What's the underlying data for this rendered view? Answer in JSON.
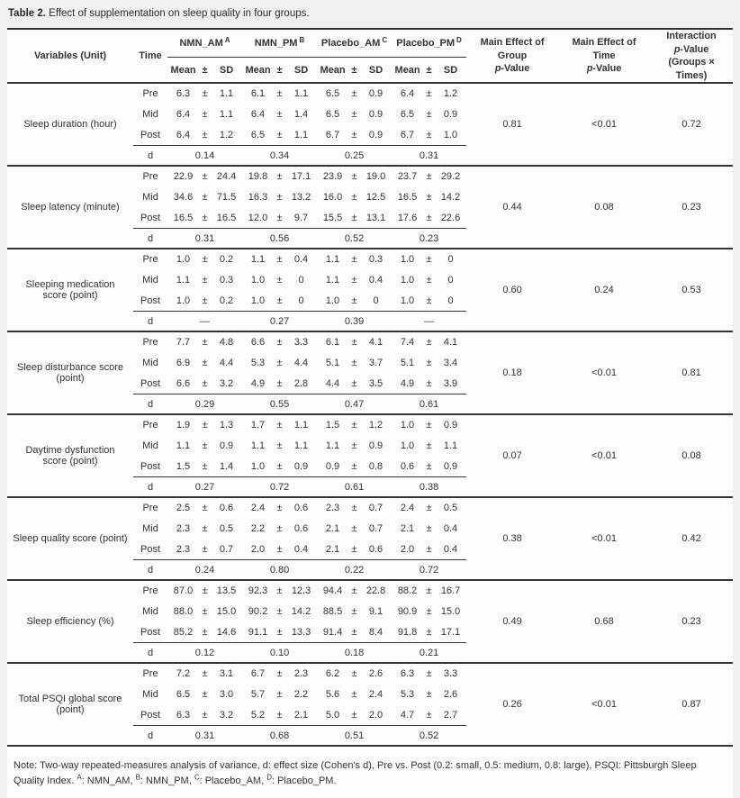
{
  "title": {
    "label": "Table 2.",
    "text": "Effect of supplementation on sleep quality in four groups."
  },
  "header": {
    "variables": "Variables (Unit)",
    "time": "Time",
    "groups": [
      {
        "name": "NMN_AM",
        "sup": "A"
      },
      {
        "name": "NMN_PM",
        "sup": "B"
      },
      {
        "name": "Placebo_AM",
        "sup": "C"
      },
      {
        "name": "Placebo_PM",
        "sup": "D"
      }
    ],
    "stat": {
      "mean": "Mean",
      "pm": "±",
      "sd": "SD"
    },
    "p_headers": {
      "group_title": "Main Effect of Group",
      "time_title": "Main Effect of Time",
      "interaction_title": "Interaction",
      "p": "p",
      "value_suffix": "-Value",
      "interaction_sub": "(Groups × Times)"
    }
  },
  "labels": {
    "pm": "±",
    "d": "d"
  },
  "sections": [
    {
      "variable": "Sleep duration (hour)",
      "rows": [
        {
          "time": "Pre",
          "values": [
            [
              "6.3",
              "1.1"
            ],
            [
              "6.1",
              "1.1"
            ],
            [
              "6.5",
              "0.9"
            ],
            [
              "6.4",
              "1.2"
            ]
          ]
        },
        {
          "time": "Mid",
          "values": [
            [
              "6.4",
              "1.1"
            ],
            [
              "6.4",
              "1.4"
            ],
            [
              "6.5",
              "0.9"
            ],
            [
              "6.5",
              "0.9"
            ]
          ]
        },
        {
          "time": "Post",
          "values": [
            [
              "6.4",
              "1.2"
            ],
            [
              "6.5",
              "1.1"
            ],
            [
              "6.7",
              "0.9"
            ],
            [
              "6.7",
              "1.0"
            ]
          ]
        }
      ],
      "d": [
        "0.14",
        "0.34",
        "0.25",
        "0.31"
      ],
      "p_group": "0.81",
      "p_time": "<0.01",
      "p_interaction": "0.72"
    },
    {
      "variable": "Sleep latency (minute)",
      "rows": [
        {
          "time": "Pre",
          "values": [
            [
              "22.9",
              "24.4"
            ],
            [
              "19.8",
              "17.1"
            ],
            [
              "23.9",
              "19.0"
            ],
            [
              "23.7",
              "29.2"
            ]
          ]
        },
        {
          "time": "Mid",
          "values": [
            [
              "34.6",
              "71.5"
            ],
            [
              "16.3",
              "13.2"
            ],
            [
              "16.0",
              "12.5"
            ],
            [
              "16.5",
              "14.2"
            ]
          ]
        },
        {
          "time": "Post",
          "values": [
            [
              "16.5",
              "16.5"
            ],
            [
              "12.0",
              "9.7"
            ],
            [
              "15.5",
              "13.1"
            ],
            [
              "17.6",
              "22.6"
            ]
          ]
        }
      ],
      "d": [
        "0.31",
        "0.56",
        "0.52",
        "0.23"
      ],
      "p_group": "0.44",
      "p_time": "0.08",
      "p_interaction": "0.23"
    },
    {
      "variable": "Sleeping medication score (point)",
      "rows": [
        {
          "time": "Pre",
          "values": [
            [
              "1.0",
              "0.2"
            ],
            [
              "1.1",
              "0.4"
            ],
            [
              "1.1",
              "0.3"
            ],
            [
              "1.0",
              "0"
            ]
          ]
        },
        {
          "time": "Mid",
          "values": [
            [
              "1.1",
              "0.3"
            ],
            [
              "1.0",
              "0"
            ],
            [
              "1.1",
              "0.4"
            ],
            [
              "1.0",
              "0"
            ]
          ]
        },
        {
          "time": "Post",
          "values": [
            [
              "1.0",
              "0.2"
            ],
            [
              "1.0",
              "0"
            ],
            [
              "1.0",
              "0"
            ],
            [
              "1.0",
              "0"
            ]
          ]
        }
      ],
      "d": [
        "—",
        "0.27",
        "0.39",
        "—"
      ],
      "p_group": "0.60",
      "p_time": "0.24",
      "p_interaction": "0.53"
    },
    {
      "variable": "Sleep disturbance score (point)",
      "rows": [
        {
          "time": "Pre",
          "values": [
            [
              "7.7",
              "4.8"
            ],
            [
              "6.6",
              "3.3"
            ],
            [
              "6.1",
              "4.1"
            ],
            [
              "7.4",
              "4.1"
            ]
          ]
        },
        {
          "time": "Mid",
          "values": [
            [
              "6.9",
              "4.4"
            ],
            [
              "5.3",
              "4.4"
            ],
            [
              "5.1",
              "3.7"
            ],
            [
              "5.1",
              "3.4"
            ]
          ]
        },
        {
          "time": "Post",
          "values": [
            [
              "6.6",
              "3.2"
            ],
            [
              "4.9",
              "2.8"
            ],
            [
              "4.4",
              "3.5"
            ],
            [
              "4.9",
              "3.9"
            ]
          ]
        }
      ],
      "d": [
        "0.29",
        "0.55",
        "0.47",
        "0.61"
      ],
      "p_group": "0.18",
      "p_time": "<0.01",
      "p_interaction": "0.81"
    },
    {
      "variable": "Daytime dysfunction score (point)",
      "rows": [
        {
          "time": "Pre",
          "values": [
            [
              "1.9",
              "1.3"
            ],
            [
              "1.7",
              "1.1"
            ],
            [
              "1.5",
              "1.2"
            ],
            [
              "1.0",
              "0.9"
            ]
          ]
        },
        {
          "time": "Mid",
          "values": [
            [
              "1.1",
              "0.9"
            ],
            [
              "1.1",
              "1.1"
            ],
            [
              "1.1",
              "0.9"
            ],
            [
              "1.0",
              "1.1"
            ]
          ]
        },
        {
          "time": "Post",
          "values": [
            [
              "1.5",
              "1.4"
            ],
            [
              "1.0",
              "0.9"
            ],
            [
              "0.9",
              "0.8"
            ],
            [
              "0.6",
              "0.9"
            ]
          ]
        }
      ],
      "d": [
        "0.27",
        "0.72",
        "0.61",
        "0.38"
      ],
      "p_group": "0.07",
      "p_time": "<0.01",
      "p_interaction": "0.08"
    },
    {
      "variable": "Sleep quality score (point)",
      "rows": [
        {
          "time": "Pre",
          "values": [
            [
              "2.5",
              "0.6"
            ],
            [
              "2.4",
              "0.6"
            ],
            [
              "2.3",
              "0.7"
            ],
            [
              "2.4",
              "0.5"
            ]
          ]
        },
        {
          "time": "Mid",
          "values": [
            [
              "2.3",
              "0.5"
            ],
            [
              "2.2",
              "0.6"
            ],
            [
              "2.1",
              "0.7"
            ],
            [
              "2.1",
              "0.4"
            ]
          ]
        },
        {
          "time": "Post",
          "values": [
            [
              "2.3",
              "0.7"
            ],
            [
              "2.0",
              "0.4"
            ],
            [
              "2.1",
              "0.6"
            ],
            [
              "2.0",
              "0.4"
            ]
          ]
        }
      ],
      "d": [
        "0.24",
        "0.80",
        "0.22",
        "0.72"
      ],
      "p_group": "0.38",
      "p_time": "<0.01",
      "p_interaction": "0.42"
    },
    {
      "variable": "Sleep efficiency (%)",
      "rows": [
        {
          "time": "Pre",
          "values": [
            [
              "87.0",
              "13.5"
            ],
            [
              "92.3",
              "12.3"
            ],
            [
              "94.4",
              "22.8"
            ],
            [
              "88.2",
              "16.7"
            ]
          ]
        },
        {
          "time": "Mid",
          "values": [
            [
              "88.0",
              "15.0"
            ],
            [
              "90.2",
              "14.2"
            ],
            [
              "88.5",
              "9.1"
            ],
            [
              "90.9",
              "15.0"
            ]
          ]
        },
        {
          "time": "Post",
          "values": [
            [
              "85.2",
              "14.6"
            ],
            [
              "91.1",
              "13.3"
            ],
            [
              "91.4",
              "8.4"
            ],
            [
              "91.8",
              "17.1"
            ]
          ]
        }
      ],
      "d": [
        "0.12",
        "0.10",
        "0.18",
        "0.21"
      ],
      "p_group": "0.49",
      "p_time": "0.68",
      "p_interaction": "0.23"
    },
    {
      "variable": "Total PSQI global score (point)",
      "rows": [
        {
          "time": "Pre",
          "values": [
            [
              "7.2",
              "3.1"
            ],
            [
              "6.7",
              "2.3"
            ],
            [
              "6.2",
              "2.6"
            ],
            [
              "6.3",
              "3.3"
            ]
          ]
        },
        {
          "time": "Mid",
          "values": [
            [
              "6.5",
              "3.0"
            ],
            [
              "5.7",
              "2.2"
            ],
            [
              "5.6",
              "2.4"
            ],
            [
              "5.3",
              "2.6"
            ]
          ]
        },
        {
          "time": "Post",
          "values": [
            [
              "6.3",
              "3.2"
            ],
            [
              "5.2",
              "2.1"
            ],
            [
              "5.0",
              "2.0"
            ],
            [
              "4.7",
              "2.7"
            ]
          ]
        }
      ],
      "d": [
        "0.31",
        "0.68",
        "0.51",
        "0.52"
      ],
      "p_group": "0.26",
      "p_time": "<0.01",
      "p_interaction": "0.87"
    }
  ],
  "note": {
    "prefix": "Note: Two-way repeated-measures analysis of variance, d: effect size (Cohen's d), Pre vs. Post (0.2: small, 0.5: medium, 0.8: large), PSQI: Pittsburgh Sleep Quality Index.",
    "definitions": [
      {
        "sup": "A",
        "label": ": NMN_AM, "
      },
      {
        "sup": "B",
        "label": ": NMN_PM, "
      },
      {
        "sup": "C",
        "label": ": Placebo_AM, "
      },
      {
        "sup": "D",
        "label": ": Placebo_PM."
      }
    ]
  }
}
